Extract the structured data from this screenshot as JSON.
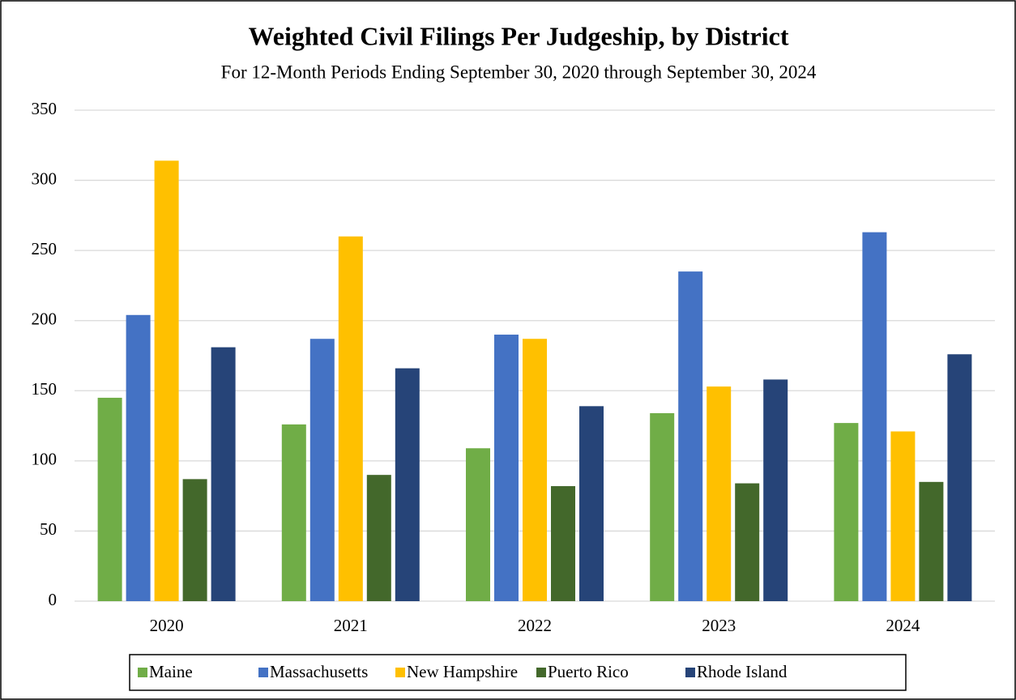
{
  "chart_data": {
    "type": "bar",
    "title": "Weighted Civil Filings Per Judgeship, by District",
    "subtitle": "For 12-Month Periods Ending September 30, 2020 through September 30, 2024",
    "categories": [
      "2020",
      "2021",
      "2022",
      "2023",
      "2024"
    ],
    "series": [
      {
        "name": "Maine",
        "color": "#70ad47",
        "values": [
          145,
          126,
          109,
          134,
          127
        ]
      },
      {
        "name": "Massachusetts",
        "color": "#4472c4",
        "values": [
          204,
          187,
          190,
          235,
          263
        ]
      },
      {
        "name": "New Hampshire",
        "color": "#ffc000",
        "values": [
          314,
          260,
          187,
          153,
          121
        ]
      },
      {
        "name": "Puerto Rico",
        "color": "#43682b",
        "values": [
          87,
          90,
          82,
          84,
          85
        ]
      },
      {
        "name": "Rhode Island",
        "color": "#264478",
        "values": [
          181,
          166,
          139,
          158,
          176
        ]
      }
    ],
    "ylim": [
      0,
      350
    ],
    "yticks": [
      0,
      50,
      100,
      150,
      200,
      250,
      300,
      350
    ],
    "grid": true,
    "legend": "bottom"
  }
}
